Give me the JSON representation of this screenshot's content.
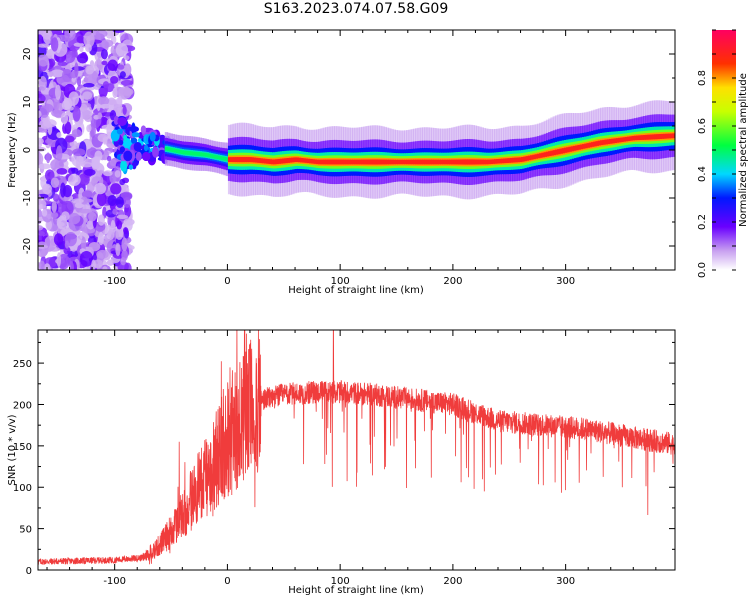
{
  "title": "S163.2023.074.07.58.G09",
  "colors": {
    "snr_line": "#f03c3c",
    "background": "#ffffff"
  },
  "chart_data": [
    {
      "type": "heatmap",
      "xlabel": "Height of straight line (km)",
      "ylabel": "Frequency (Hz)",
      "xlim": [
        -168,
        397
      ],
      "ylim": [
        -25,
        25
      ],
      "xticks": [
        -100,
        0,
        100,
        200,
        300
      ],
      "yticks": [
        -20,
        -10,
        0,
        10,
        20
      ],
      "colorbar": {
        "label": "Normalized spectral amplitude",
        "range": [
          0,
          1
        ],
        "ticks": [
          0.0,
          0.2,
          0.4,
          0.6,
          0.8
        ],
        "colormap": "rainbow (white-purple-blue-cyan-green-yellow-red-magenta)"
      },
      "frequency_ridge": {
        "x": [
          -100,
          -80,
          -60,
          -40,
          -20,
          0,
          20,
          40,
          60,
          80,
          100,
          150,
          200,
          230,
          260,
          280,
          300,
          330,
          360,
          397
        ],
        "y": [
          1.5,
          1.0,
          0.5,
          -0.5,
          -1.0,
          -2.0,
          -2.0,
          -2.5,
          -2.0,
          -2.5,
          -2.5,
          -2.5,
          -2.5,
          -2.5,
          -2.0,
          -1.0,
          0.0,
          1.5,
          2.5,
          3.0
        ]
      },
      "noise_region_x": [
        -168,
        -95
      ]
    },
    {
      "type": "line",
      "xlabel": "Height of straight line (km)",
      "ylabel": "SNR (10 * v/v)",
      "xlim": [
        -168,
        397
      ],
      "ylim": [
        0,
        290
      ],
      "xticks": [
        -100,
        0,
        100,
        200,
        300
      ],
      "yticks": [
        0,
        50,
        100,
        150,
        200,
        250
      ],
      "envelope": {
        "x": [
          -168,
          -100,
          -75,
          -60,
          -45,
          -30,
          -15,
          0,
          15,
          30,
          50,
          80,
          100,
          130,
          160,
          200,
          240,
          280,
          320,
          360,
          397
        ],
        "y": [
          10,
          12,
          15,
          30,
          55,
          90,
          120,
          160,
          185,
          205,
          212,
          215,
          215,
          212,
          207,
          200,
          180,
          175,
          170,
          160,
          152
        ]
      },
      "spike": {
        "x": 94,
        "y": 290
      }
    }
  ]
}
